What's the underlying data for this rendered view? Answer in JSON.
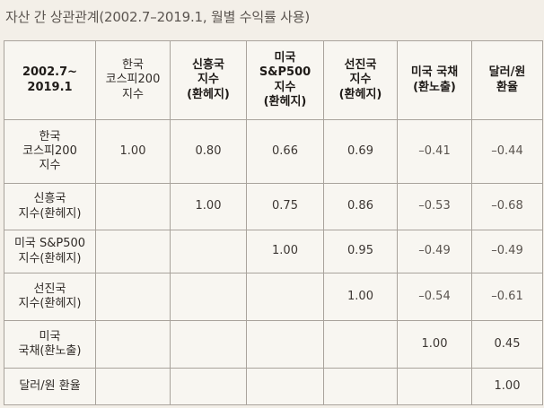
{
  "title": "자산 간 상관관계(2002.7–2019.1, 월별 수익률 사용)",
  "header": {
    "corner": [
      "2002.7~",
      "2019.1"
    ],
    "columns": [
      {
        "lines": [
          "한국",
          "코스피200",
          "지수"
        ],
        "bold": false
      },
      {
        "lines": [
          "신흥국",
          "지수",
          "(환헤지)"
        ],
        "bold": true
      },
      {
        "lines": [
          "미국",
          "S&P500",
          "지수",
          "(환헤지)"
        ],
        "bold": true
      },
      {
        "lines": [
          "선진국",
          "지수",
          "(환헤지)"
        ],
        "bold": true
      },
      {
        "lines": [
          "미국 국채",
          "(환노출)"
        ],
        "bold": true
      },
      {
        "lines": [
          "달러/원",
          "환율"
        ],
        "bold": true
      }
    ]
  },
  "rows": [
    {
      "label": [
        "한국",
        "코스피200",
        "지수"
      ],
      "values": [
        "1.00",
        "0.80",
        "0.66",
        "0.69",
        "–0.41",
        "–0.44"
      ]
    },
    {
      "label": [
        "신흥국",
        "지수(환헤지)"
      ],
      "values": [
        "",
        "1.00",
        "0.75",
        "0.86",
        "–0.53",
        "–0.68"
      ]
    },
    {
      "label": [
        "미국 S&P500",
        "지수(환헤지)"
      ],
      "values": [
        "",
        "",
        "1.00",
        "0.95",
        "–0.49",
        "–0.49"
      ]
    },
    {
      "label": [
        "선진국",
        "지수(환헤지)"
      ],
      "values": [
        "",
        "",
        "",
        "1.00",
        "–0.54",
        "–0.61"
      ]
    },
    {
      "label": [
        "미국",
        "국채(환노출)"
      ],
      "values": [
        "",
        "",
        "",
        "",
        "1.00",
        "0.45"
      ]
    },
    {
      "label": [
        "달러/원 환율"
      ],
      "values": [
        "",
        "",
        "",
        "",
        "",
        "1.00"
      ]
    }
  ]
}
